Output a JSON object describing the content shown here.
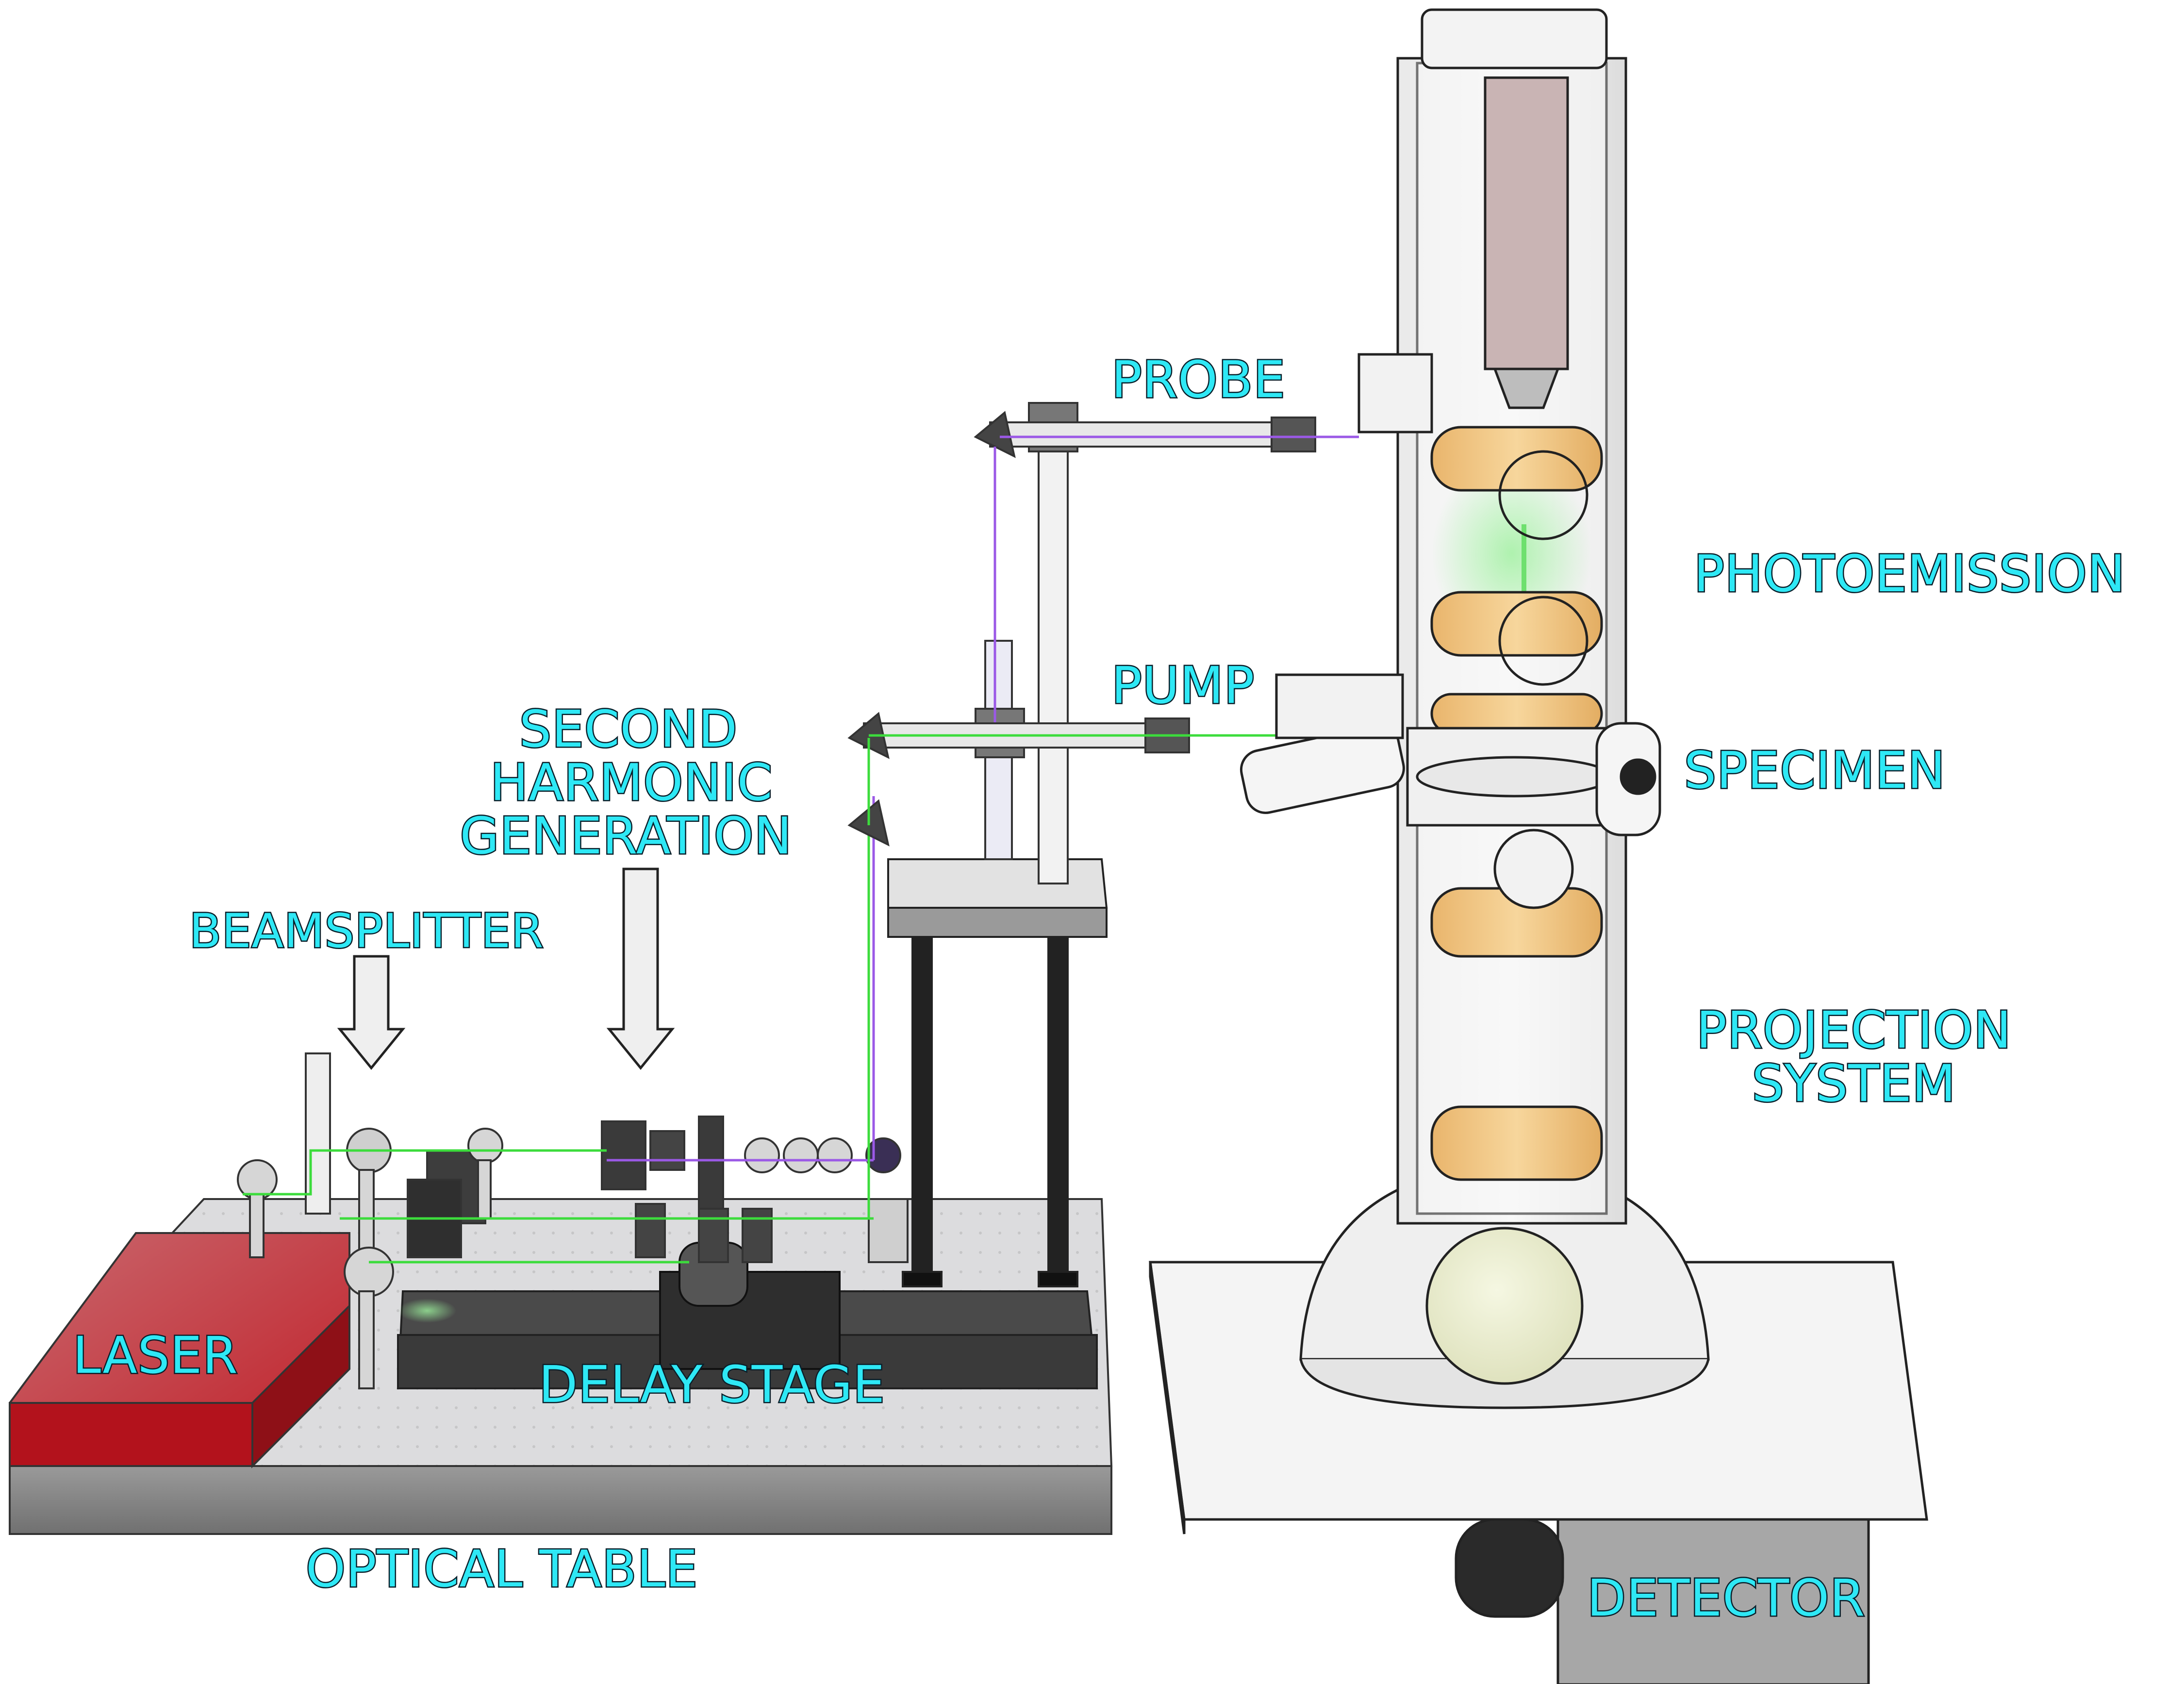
{
  "labels": {
    "probe": "PROBE",
    "photoemission": "PHOTOEMISSION",
    "pump": "PUMP",
    "specimen": "SPECIMEN",
    "second_harmonic_line1": "SECOND",
    "second_harmonic_line2": "HARMONIC",
    "second_harmonic_line3": "GENERATION",
    "beamsplitter": "BEAMSPLITTER",
    "projection_line1": "PROJECTION",
    "projection_line2": "SYSTEM",
    "laser": "LASER",
    "delay_stage": "DELAY STAGE",
    "optical_table": "OPTICAL TABLE",
    "detector": "DETECTOR"
  },
  "colors": {
    "label_text": "#2ee8f5",
    "label_outline": "#0a1f2a",
    "laser_block": "#c8323a",
    "pump_beam": "#3cdc3c",
    "probe_beam": "#9b59e6",
    "lens_discs": "#f2cf8e",
    "table_surface": "#d9dadc"
  }
}
